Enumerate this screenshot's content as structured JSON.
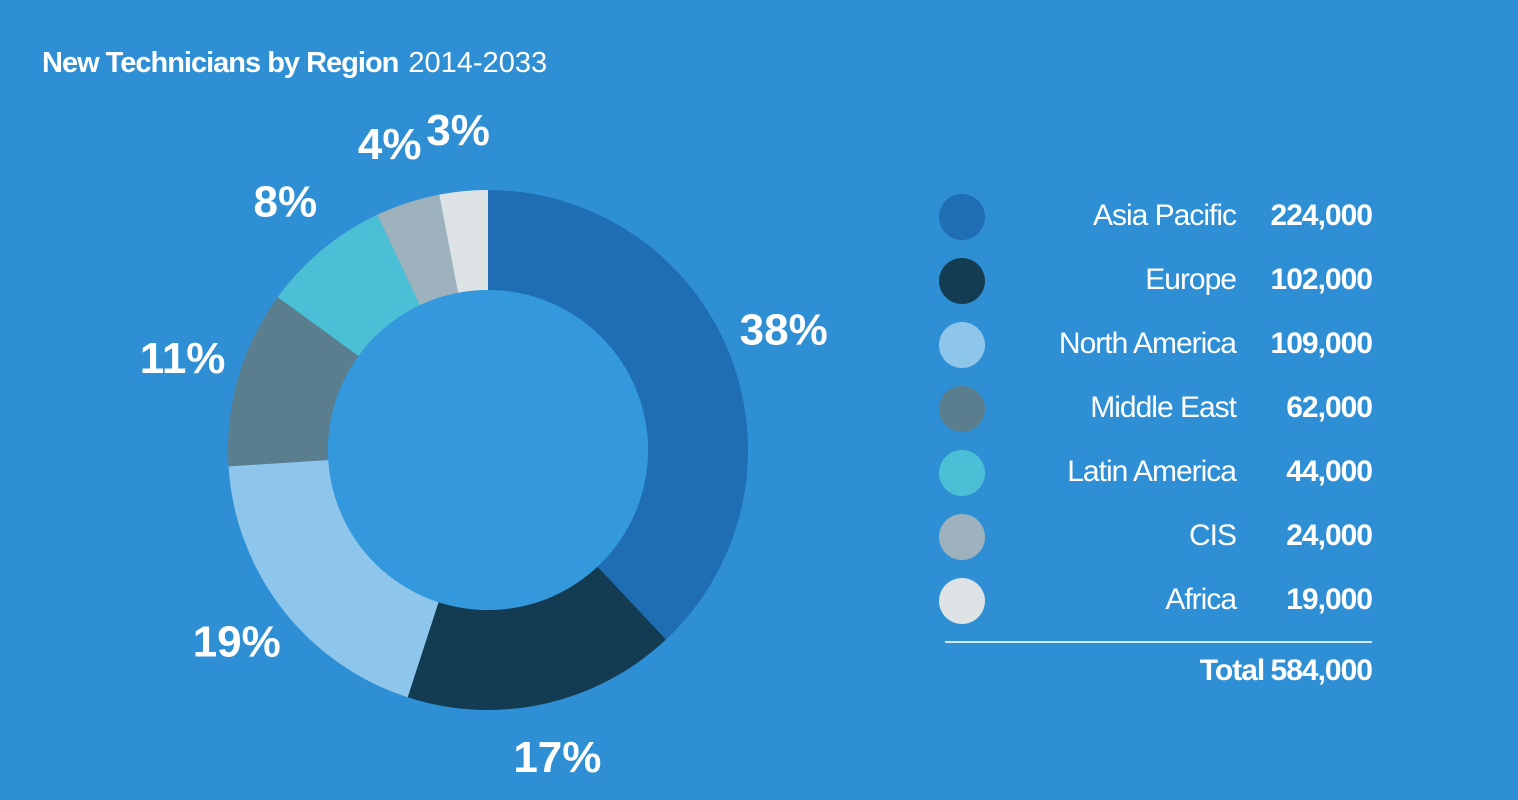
{
  "chart_data": {
    "type": "donut",
    "title": "New Technicians by Region",
    "subtitle": "2014-2033",
    "categories": [
      "Asia Pacific",
      "Europe",
      "North America",
      "Middle East",
      "Latin America",
      "CIS",
      "Africa"
    ],
    "values": [
      38,
      17,
      19,
      11,
      8,
      4,
      3
    ],
    "value_labels": [
      "38%",
      "17%",
      "19%",
      "11%",
      "8%",
      "4%",
      "3%"
    ],
    "colors": [
      "#1f6db3",
      "#133c52",
      "#8ec5ea",
      "#5a7e8e",
      "#4bbfd5",
      "#9db2bd",
      "#dde2e5"
    ],
    "amounts": [
      224000,
      102000,
      109000,
      62000,
      44000,
      24000,
      19000
    ],
    "amount_labels": [
      "224,000",
      "102,000",
      "109,000",
      "62,000",
      "44,000",
      "24,000",
      "19,000"
    ],
    "total": {
      "label": "Total",
      "value": 584000,
      "value_label": "584,000"
    }
  }
}
